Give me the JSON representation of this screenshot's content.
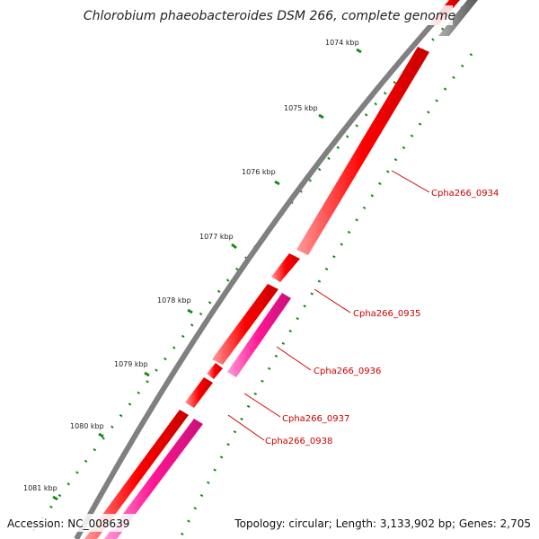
{
  "title": "Chlorobium phaeobacteroides DSM 266, complete genome",
  "footer": {
    "accession": "Accession: NC_008639",
    "summary": "Topology: circular; Length: 3,133,902 bp; Genes: 2,705"
  },
  "ticks": [
    "1074 kbp",
    "1075 kbp",
    "1076 kbp",
    "1077 kbp",
    "1078 kbp",
    "1079 kbp",
    "1080 kbp",
    "1081 kbp"
  ],
  "genes": [
    {
      "name": "Cpha266_0934",
      "color": "#ff0000"
    },
    {
      "name": "Cpha266_0935",
      "color": "#ff0000"
    },
    {
      "name": "Cpha266_0936",
      "color": "#ff1493"
    },
    {
      "name": "Cpha266_0937",
      "color": "#ff0000"
    },
    {
      "name": "Cpha266_0938",
      "color": "#ff1493"
    }
  ],
  "colors": {
    "backbone": "#808080",
    "cds": "#ff0000",
    "cds_alt": "#ff1493",
    "tick": "#1a8a1a",
    "label": "#cc0000"
  }
}
